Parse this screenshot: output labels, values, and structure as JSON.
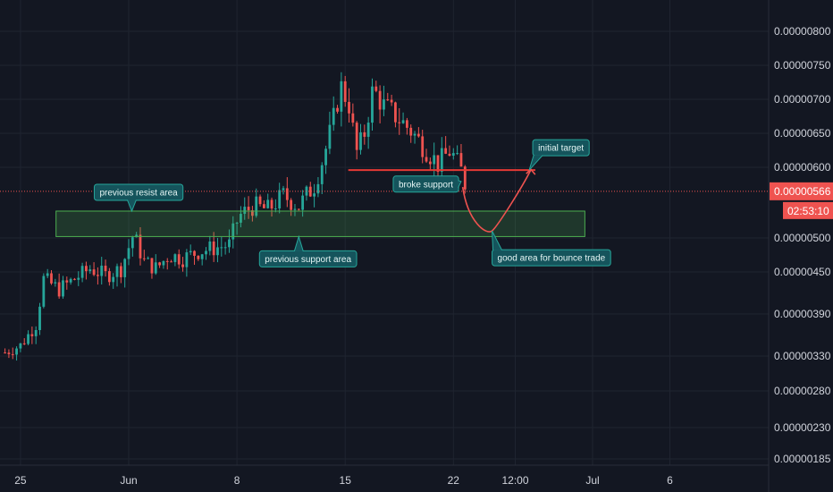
{
  "chart_data": {
    "type": "candlestick",
    "y_axis": {
      "range": [
        1.8e-06,
        8.2e-06
      ],
      "ticks": [
        "0.00000800",
        "0.00000750",
        "0.00000700",
        "0.00000650",
        "0.00000600",
        "0.00000500",
        "0.00000450",
        "0.00000390",
        "0.00000330",
        "0.00000280",
        "0.00000230",
        "0.00000185"
      ]
    },
    "x_axis": {
      "ticks": [
        {
          "label": "25",
          "t": -7
        },
        {
          "label": "Jun",
          "t": 0
        },
        {
          "label": "8",
          "t": 7
        },
        {
          "label": "15",
          "t": 14
        },
        {
          "label": "22",
          "t": 21
        },
        {
          "label": "12:00",
          "t": 25
        },
        {
          "label": "Jul",
          "t": 30
        },
        {
          "label": "6",
          "t": 35
        }
      ]
    },
    "last_price": {
      "value": "0.00000566",
      "countdown": "02:53:10",
      "color": "#ef5350"
    },
    "colors": {
      "up": "#26a69a",
      "down": "#ef5350",
      "background": "#131722",
      "grid": "#1f2430"
    },
    "price_path": [
      [
        -8.0,
        3.35e-06
      ],
      [
        -7.0,
        3.45e-06
      ],
      [
        -6.0,
        3.75e-06
      ],
      [
        -5.5,
        4.4e-06
      ],
      [
        -4.5,
        4.25e-06
      ],
      [
        -3.5,
        4.4e-06
      ],
      [
        -2.5,
        4.55e-06
      ],
      [
        -1.5,
        4.45e-06
      ],
      [
        -0.5,
        4.55e-06
      ],
      [
        0.3,
        5.05e-06
      ],
      [
        1.0,
        4.65e-06
      ],
      [
        1.8,
        4.55e-06
      ],
      [
        2.6,
        4.75e-06
      ],
      [
        3.5,
        4.7e-06
      ],
      [
        4.5,
        4.8e-06
      ],
      [
        5.5,
        4.85e-06
      ],
      [
        6.5,
        4.9e-06
      ],
      [
        7.1,
        5.3e-06
      ],
      [
        8.0,
        5.45e-06
      ],
      [
        9.0,
        5.4e-06
      ],
      [
        10.0,
        5.6e-06
      ],
      [
        11.0,
        5.45e-06
      ],
      [
        12.0,
        5.75e-06
      ],
      [
        12.6,
        6.15e-06
      ],
      [
        13.2,
        6.65e-06
      ],
      [
        13.7,
        7.2e-06
      ],
      [
        14.3,
        6.9e-06
      ],
      [
        14.7,
        6.2e-06
      ],
      [
        15.2,
        6.45e-06
      ],
      [
        15.8,
        7.15e-06
      ],
      [
        16.5,
        6.9e-06
      ],
      [
        17.3,
        6.75e-06
      ],
      [
        18.2,
        6.55e-06
      ],
      [
        19.1,
        6.3e-06
      ],
      [
        20.0,
        6.05e-06
      ],
      [
        20.8,
        6.25e-06
      ],
      [
        21.5,
        5.95e-06
      ],
      [
        21.9,
        5.66e-06
      ]
    ],
    "annotations": [
      {
        "kind": "zone",
        "y": [
          5.02e-06,
          5.38e-06
        ],
        "t": [
          -4.7,
          29.5
        ],
        "color": "#4caf50"
      },
      {
        "kind": "line",
        "y": 5.96e-06,
        "t": [
          14.2,
          26.3
        ],
        "color": "#e53935"
      },
      {
        "kind": "bounce_curve",
        "points": [
          [
            21.6,
            5.72e-06
          ],
          [
            23.5,
            5.1e-06
          ],
          [
            26.0,
            5.96e-06
          ]
        ],
        "color": "#ef5350"
      }
    ],
    "callouts": [
      {
        "text": "previous resist area",
        "pointer": [
          0.2,
          5.38e-06
        ]
      },
      {
        "text": "previous support area",
        "pointer": [
          11.0,
          5.02e-06
        ]
      },
      {
        "text": "broke support",
        "pointer": [
          21.5,
          5.8e-06
        ]
      },
      {
        "text": "initial target",
        "pointer": [
          25.9,
          5.96e-06
        ]
      },
      {
        "text": "good area for bounce trade",
        "pointer": [
          23.5,
          5.1e-06
        ]
      }
    ]
  }
}
